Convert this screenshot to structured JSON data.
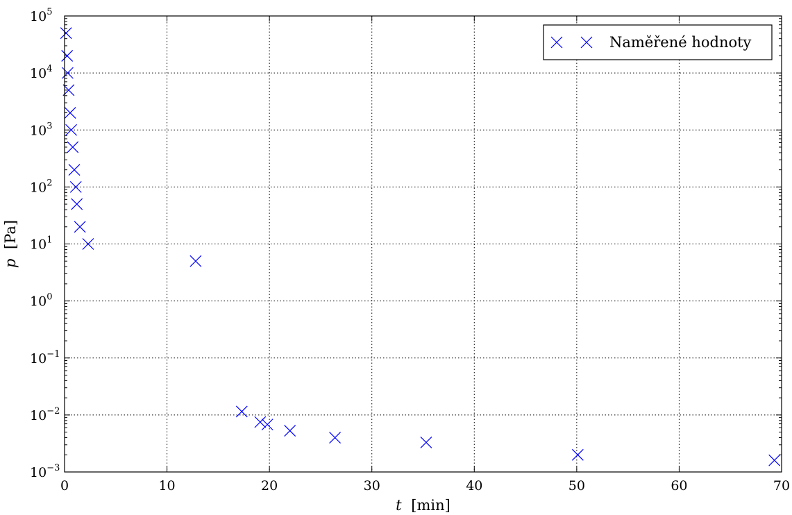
{
  "colors": {
    "marker": "#0000ff",
    "grid": "#000000",
    "background": "#ffffff"
  },
  "chart_data": {
    "type": "scatter",
    "title": "",
    "xlabel_var": "t",
    "xlabel_unit": "[min]",
    "ylabel_var": "p",
    "ylabel_unit": "[Pa]",
    "xlim": [
      0,
      70
    ],
    "ylim": [
      0.001,
      100000
    ],
    "yscale": "log",
    "grid": true,
    "legend_position": "top-right",
    "x_ticks": [
      "0",
      "10",
      "20",
      "30",
      "40",
      "50",
      "60",
      "70"
    ],
    "y_ticks": [
      {
        "base": "10",
        "exp": "−3",
        "value": 0.001
      },
      {
        "base": "10",
        "exp": "−2",
        "value": 0.01
      },
      {
        "base": "10",
        "exp": "−1",
        "value": 0.1
      },
      {
        "base": "10",
        "exp": "0",
        "value": 1
      },
      {
        "base": "10",
        "exp": "1",
        "value": 10
      },
      {
        "base": "10",
        "exp": "2",
        "value": 100
      },
      {
        "base": "10",
        "exp": "3",
        "value": 1000
      },
      {
        "base": "10",
        "exp": "4",
        "value": 10000
      },
      {
        "base": "10",
        "exp": "5",
        "value": 100000
      }
    ],
    "series": [
      {
        "name": "Naměřené hodnoty",
        "marker": "x",
        "color": "#0000ff",
        "points": [
          {
            "x": 0.15,
            "y": 50000
          },
          {
            "x": 0.25,
            "y": 20000
          },
          {
            "x": 0.3,
            "y": 10000
          },
          {
            "x": 0.4,
            "y": 5000
          },
          {
            "x": 0.55,
            "y": 2000
          },
          {
            "x": 0.65,
            "y": 1000
          },
          {
            "x": 0.8,
            "y": 500
          },
          {
            "x": 0.95,
            "y": 200
          },
          {
            "x": 1.1,
            "y": 100
          },
          {
            "x": 1.2,
            "y": 50
          },
          {
            "x": 1.5,
            "y": 20
          },
          {
            "x": 2.3,
            "y": 10
          },
          {
            "x": 12.8,
            "y": 5
          },
          {
            "x": 17.3,
            "y": 0.0115
          },
          {
            "x": 19.1,
            "y": 0.0075
          },
          {
            "x": 19.8,
            "y": 0.0068
          },
          {
            "x": 22.0,
            "y": 0.0053
          },
          {
            "x": 26.4,
            "y": 0.004
          },
          {
            "x": 35.3,
            "y": 0.0033
          },
          {
            "x": 50.1,
            "y": 0.002
          },
          {
            "x": 69.3,
            "y": 0.0016
          }
        ]
      }
    ]
  }
}
